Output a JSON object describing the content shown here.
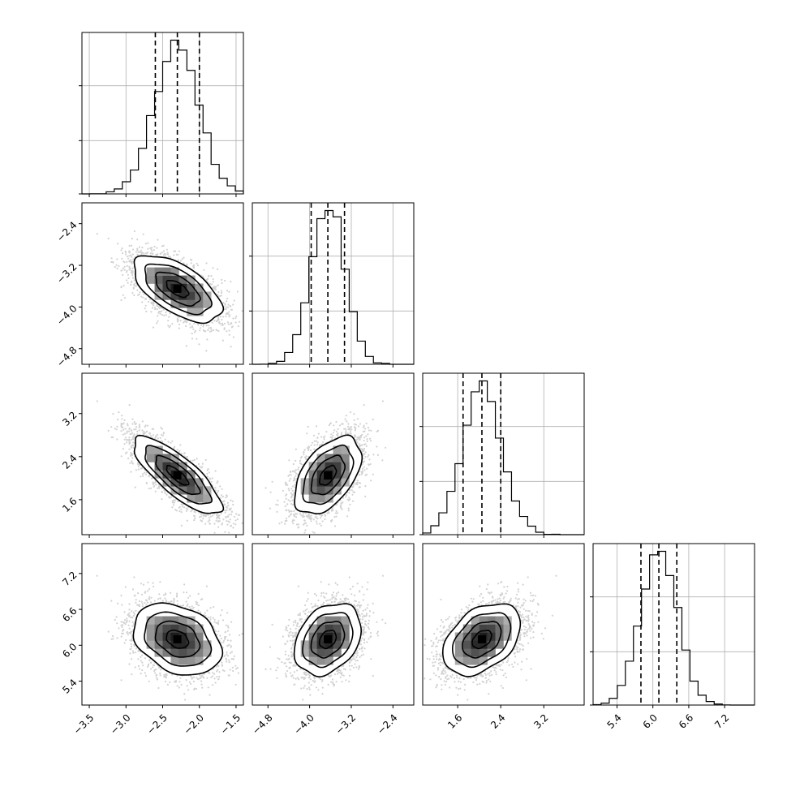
{
  "chart_data": {
    "type": "scatter",
    "title": "",
    "n_params": 4,
    "colors": {
      "line": "#000000",
      "grid": "#b0b0b0",
      "scatter": "#808080"
    },
    "grid": true,
    "parameters": [
      {
        "name": "",
        "median": -2.3,
        "sigma": 0.3,
        "quantiles": [
          -2.6,
          -2.3,
          -2.0
        ],
        "range": [
          -3.6,
          -1.4
        ],
        "ticks": [
          -3.5,
          -3.0,
          -2.5,
          -2.0,
          -1.5
        ],
        "tick_labels": [
          "−3.5",
          "−3.0",
          "−2.5",
          "−2.0",
          "−1.5"
        ]
      },
      {
        "name": "",
        "median": -3.65,
        "sigma": 0.32,
        "quantiles": [
          -3.97,
          -3.65,
          -3.33
        ],
        "range": [
          -5.1,
          -2.0
        ],
        "ticks": [
          -4.8,
          -4.0,
          -3.2,
          -2.4
        ],
        "tick_labels": [
          "−4.8",
          "−4.0",
          "−3.2",
          "−2.4"
        ]
      },
      {
        "name": "",
        "median": 2.05,
        "sigma": 0.36,
        "quantiles": [
          1.7,
          2.05,
          2.4
        ],
        "range": [
          0.95,
          3.95
        ],
        "ticks": [
          1.6,
          2.4,
          3.2
        ],
        "tick_labels": [
          "1.6",
          "2.4",
          "3.2"
        ]
      },
      {
        "name": "",
        "median": 6.1,
        "sigma": 0.3,
        "quantiles": [
          5.8,
          6.1,
          6.4
        ],
        "range": [
          5.0,
          7.7
        ],
        "ticks": [
          5.4,
          6.0,
          6.6,
          7.2
        ],
        "tick_labels": [
          "5.4",
          "6.0",
          "6.6",
          "7.2"
        ]
      }
    ],
    "correlations": [
      {
        "pair": [
          0,
          1
        ],
        "rho": -0.6
      },
      {
        "pair": [
          0,
          2
        ],
        "rho": -0.8
      },
      {
        "pair": [
          1,
          2
        ],
        "rho": 0.5
      },
      {
        "pair": [
          0,
          3
        ],
        "rho": -0.3
      },
      {
        "pair": [
          1,
          3
        ],
        "rho": 0.3
      },
      {
        "pair": [
          2,
          3
        ],
        "rho": 0.4
      }
    ],
    "histogram_bins": 20,
    "contour_levels": [
      0.5,
      1.0,
      1.5,
      2.0
    ],
    "n_samples": 6000
  }
}
